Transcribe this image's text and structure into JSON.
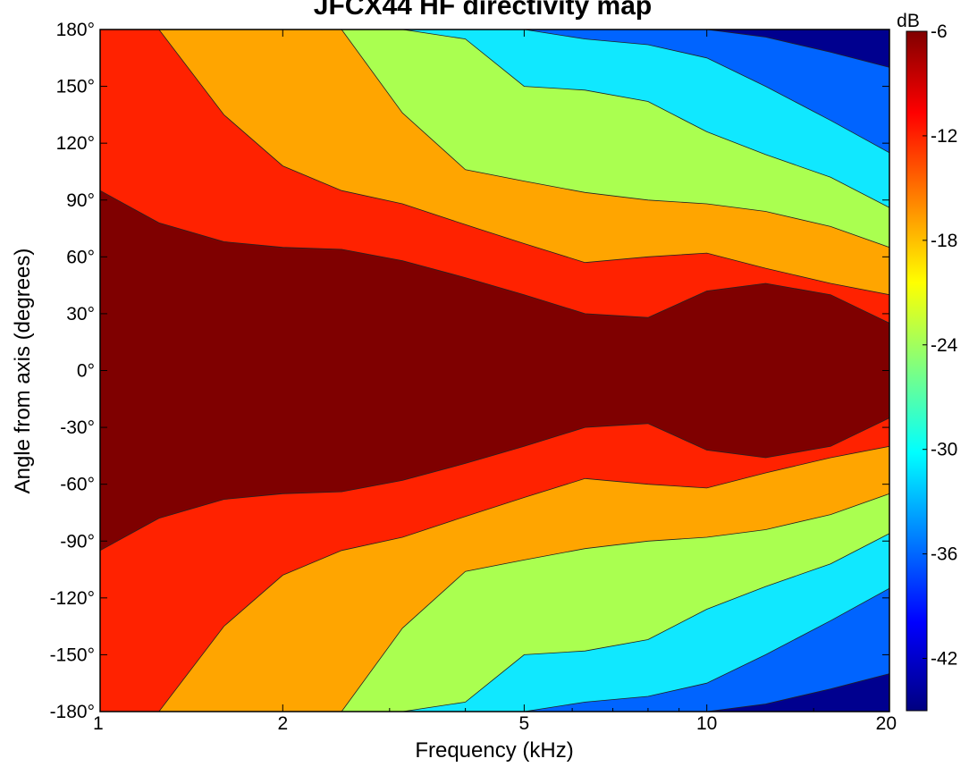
{
  "chart_data": {
    "type": "heatmap",
    "title": "JFCX44 HF directivity map",
    "xlabel": "Frequency (kHz)",
    "ylabel": "Angle from axis (degrees)",
    "x_scale": "log",
    "xlim": [
      1,
      20
    ],
    "ylim": [
      -180,
      180
    ],
    "x_ticks": [
      1,
      2,
      5,
      10,
      20
    ],
    "x_tick_labels": [
      "1",
      "2",
      "5",
      "10",
      "20"
    ],
    "y_ticks": [
      180,
      150,
      120,
      90,
      60,
      30,
      0,
      -30,
      -60,
      -90,
      -120,
      -150,
      -180
    ],
    "y_tick_labels": [
      "180°",
      "150°",
      "120°",
      "90°",
      "60°",
      "30°",
      "0°",
      "-30°",
      "-60°",
      "-90°",
      "-120°",
      "-150°",
      "-180°"
    ],
    "colorbar": {
      "label": "dB",
      "ticks": [
        -6,
        -12,
        -18,
        -24,
        -30,
        -36,
        -42
      ],
      "tick_labels": [
        "-6",
        "-12",
        "-18",
        "-24",
        "-30",
        "-36",
        "-42"
      ],
      "range": [
        -45,
        -6
      ]
    },
    "contour_levels_db": [
      -6,
      -9,
      -15,
      -21,
      -27,
      -33,
      -39
    ],
    "contour_colors": [
      "#7f0000",
      "#ff2200",
      "#ffa500",
      "#aaff50",
      "#10e8ff",
      "#0064ff",
      "#00008f"
    ],
    "frequencies_khz": [
      1,
      1.25,
      1.6,
      2,
      2.5,
      3.15,
      4,
      5,
      6.3,
      8,
      10,
      12.5,
      16,
      20
    ],
    "band_edges": {
      "minus_6dB_angle": [
        95,
        78,
        68,
        65,
        64,
        58,
        49,
        40,
        30,
        28,
        42,
        46,
        40,
        25
      ],
      "minus_12dB_angle": [
        180,
        180,
        135,
        108,
        95,
        88,
        77,
        67,
        57,
        60,
        62,
        54,
        46,
        40
      ],
      "minus_18dB_angle": [
        180,
        180,
        180,
        180,
        180,
        136,
        106,
        100,
        94,
        90,
        88,
        84,
        76,
        65
      ],
      "minus_24dB_angle": [
        180,
        180,
        180,
        180,
        180,
        180,
        175,
        150,
        148,
        142,
        126,
        114,
        102,
        86
      ],
      "minus_30dB_angle": [
        180,
        180,
        180,
        180,
        180,
        180,
        180,
        180,
        175,
        172,
        165,
        150,
        132,
        115
      ],
      "minus_36dB_angle": [
        180,
        180,
        180,
        180,
        180,
        180,
        180,
        180,
        180,
        180,
        180,
        176,
        168,
        160
      ]
    },
    "grid": false,
    "legend": "colorbar-right"
  }
}
